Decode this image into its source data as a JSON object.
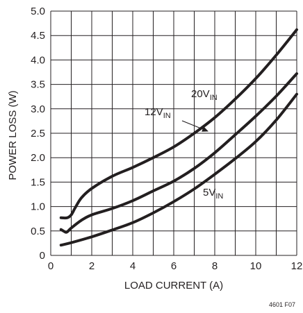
{
  "chart_data": {
    "type": "line",
    "xlabel": "LOAD CURRENT (A)",
    "ylabel": "POWER LOSS (W)",
    "xlim": [
      0,
      12
    ],
    "ylim": [
      0,
      5.0
    ],
    "x_ticks": [
      "0",
      "2",
      "4",
      "6",
      "8",
      "10",
      "12"
    ],
    "y_ticks": [
      "0",
      "0.5",
      "1.0",
      "1.5",
      "2.0",
      "2.5",
      "3.0",
      "3.5",
      "4.0",
      "4.5",
      "5.0"
    ],
    "x_tick_values": [
      0,
      2,
      4,
      6,
      8,
      10,
      12
    ],
    "y_tick_values": [
      0,
      0.5,
      1.0,
      1.5,
      2.0,
      2.5,
      3.0,
      3.5,
      4.0,
      4.5,
      5.0
    ],
    "grid": true,
    "series": [
      {
        "name": "20V",
        "name_sub": "IN",
        "x": [
          0.5,
          0.8,
          1.0,
          1.2,
          1.5,
          2.0,
          3.0,
          4.0,
          5.0,
          6.0,
          7.0,
          8.0,
          9.0,
          10.0,
          11.0,
          12.0
        ],
        "y": [
          0.77,
          0.77,
          0.83,
          0.98,
          1.18,
          1.37,
          1.62,
          1.8,
          2.0,
          2.22,
          2.5,
          2.82,
          3.2,
          3.62,
          4.1,
          4.62
        ]
      },
      {
        "name": "12V",
        "name_sub": "IN",
        "x": [
          0.5,
          0.7,
          0.8,
          1.0,
          1.5,
          2.0,
          3.0,
          4.0,
          5.0,
          6.0,
          7.0,
          8.0,
          9.0,
          10.0,
          11.0,
          12.0
        ],
        "y": [
          0.53,
          0.48,
          0.48,
          0.56,
          0.72,
          0.83,
          0.96,
          1.12,
          1.32,
          1.52,
          1.78,
          2.1,
          2.47,
          2.85,
          3.26,
          3.72
        ]
      },
      {
        "name": "5V",
        "name_sub": "IN",
        "x": [
          0.5,
          1.0,
          2.0,
          3.0,
          4.0,
          5.0,
          6.0,
          7.0,
          8.0,
          9.0,
          10.0,
          11.0,
          12.0
        ],
        "y": [
          0.21,
          0.26,
          0.38,
          0.52,
          0.67,
          0.87,
          1.1,
          1.36,
          1.66,
          1.98,
          2.33,
          2.77,
          3.3
        ]
      }
    ],
    "annotations": [
      {
        "text": "20V",
        "sub": "IN",
        "for_series": "20V"
      },
      {
        "text": "12V",
        "sub": "IN",
        "for_series": "12V",
        "arrow": true
      },
      {
        "text": "5V",
        "sub": "IN",
        "for_series": "5V"
      }
    ],
    "figure_id": "4601 F07"
  }
}
